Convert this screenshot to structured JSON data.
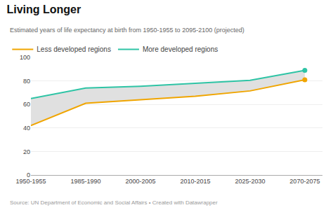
{
  "chart_data": {
    "type": "line",
    "title": "Living Longer",
    "subtitle": "Estimated years of life expectancy at birth from 1950-1955 to 2095-2100 (projected)",
    "annotations": [
      "Source: UN Department of Economic and Social Affairs • Created with Datawrapper"
    ],
    "categories": [
      "1950-1955",
      "1985-1990",
      "2000-2005",
      "2010-2015",
      "2025-2030",
      "2070-2075"
    ],
    "series": [
      {
        "name": "More developed regions",
        "color": "#2ec4a5",
        "values": [
          65,
          74,
          75.5,
          78,
          80.5,
          89
        ]
      },
      {
        "name": "Less developed regions",
        "color": "#f0a500",
        "values": [
          42,
          61,
          64,
          67,
          71.5,
          81
        ]
      }
    ],
    "color": "#e0e0e0",
    "ylim": [
      0,
      100
    ],
    "yticks": [
      0,
      20,
      40,
      60,
      80,
      100
    ],
    "grid": true,
    "legend": "upper left"
  }
}
